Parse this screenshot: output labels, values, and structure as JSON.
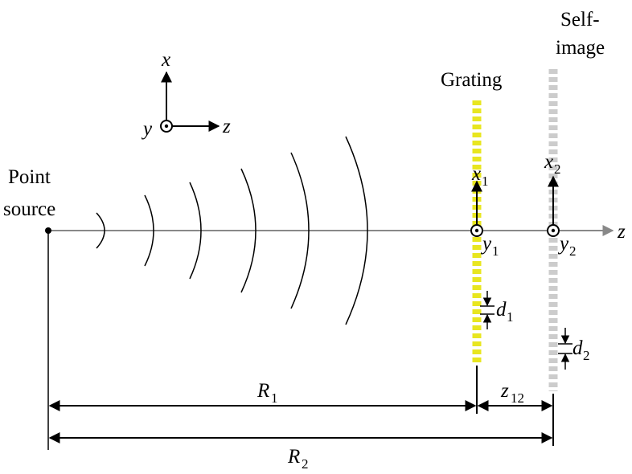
{
  "coordinate_frame": {
    "x": "x",
    "y": "y",
    "z": "z"
  },
  "point_source": {
    "line1": "Point",
    "line2": "source"
  },
  "grating": {
    "label": "Grating",
    "x": {
      "symbol": "x",
      "subscript": "1"
    },
    "y": {
      "symbol": "y",
      "subscript": "1"
    },
    "period": {
      "symbol": "d",
      "subscript": "1"
    }
  },
  "self_image": {
    "line1": "Self-",
    "line2": "image",
    "x": {
      "symbol": "x",
      "subscript": "2"
    },
    "y": {
      "symbol": "y",
      "subscript": "2"
    },
    "period": {
      "symbol": "d",
      "subscript": "2"
    }
  },
  "optical_axis": "z",
  "distances": {
    "R1": {
      "symbol": "R",
      "subscript": "1"
    },
    "R2": {
      "symbol": "R",
      "subscript": "2"
    },
    "z12": {
      "symbol": "z",
      "subscript": "12"
    }
  }
}
